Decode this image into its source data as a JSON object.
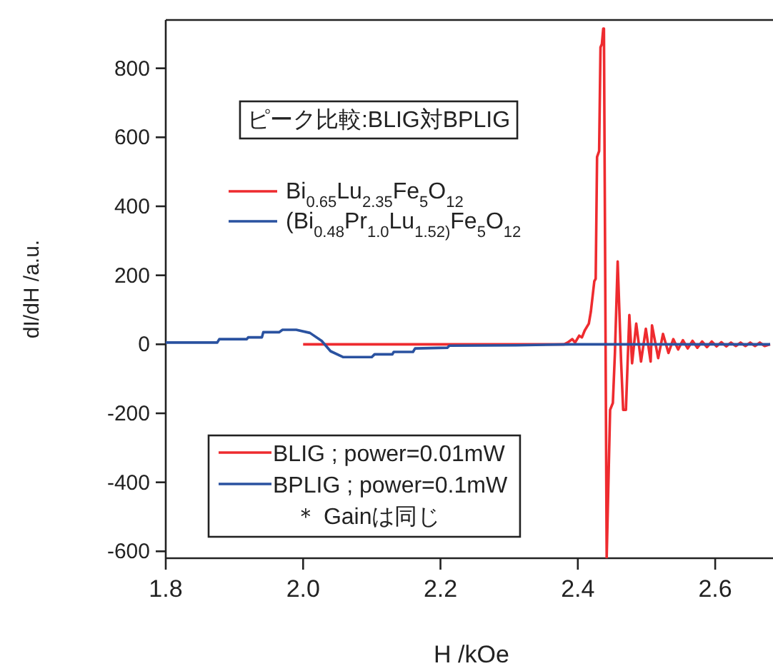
{
  "chart_data": {
    "type": "line",
    "title": "ピーク比較:BLIG対BPLIG",
    "xlabel": "H /kOe",
    "ylabel": "dI/dH  /a.u.",
    "xlim": [
      1.8,
      2.68
    ],
    "ylim": [
      -620,
      940
    ],
    "xticks": [
      1.8,
      {
        "value": 2,
        "label": "2.0"
      },
      2.2,
      2.4,
      2.6
    ],
    "yticks": [
      -600,
      -400,
      -200,
      0,
      200,
      400,
      600,
      800
    ],
    "legend": "top left",
    "grid": false,
    "marker": "none",
    "line_style": "solid",
    "annotations": [
      "BLIG ; power=0.01mW",
      "BPLIG ; power=0.1mW",
      "＊ Gainは同じ"
    ],
    "series": [
      {
        "name": "Bi$_{0.65}$Lu$_{2.35}$Fe$_{5}$O$_{12}$",
        "color": "#ee2b2f",
        "x": [
          2.0,
          2.38,
          2.385,
          2.392,
          2.396,
          2.402,
          2.406,
          2.41,
          2.416,
          2.419,
          2.424,
          2.426,
          2.428,
          2.431,
          2.433,
          2.435,
          2.437,
          2.438,
          2.442,
          2.447,
          2.451,
          2.454,
          2.458,
          2.463,
          2.466,
          2.47,
          2.475,
          2.479,
          2.485,
          2.492,
          2.499,
          2.506,
          2.508,
          2.517,
          2.524,
          2.532,
          2.539,
          2.546,
          2.553,
          2.56,
          2.567,
          2.574,
          2.581,
          2.588,
          2.595,
          2.602,
          2.609,
          2.616,
          2.623,
          2.63,
          2.637,
          2.644,
          2.651,
          2.658,
          2.665,
          2.672,
          2.68
        ],
        "values": [
          0,
          0,
          5,
          15,
          5,
          25,
          20,
          40,
          60,
          95,
          183,
          190,
          543,
          560,
          861,
          870,
          915,
          915,
          -618,
          -190,
          -170,
          -25,
          240,
          -50,
          -190,
          -190,
          85,
          -55,
          60,
          -50,
          45,
          -50,
          55,
          -40,
          30,
          -25,
          15,
          -15,
          12,
          -12,
          10,
          -10,
          8,
          -8,
          8,
          -6,
          6,
          -6,
          5,
          -5,
          5,
          -5,
          5,
          -5,
          5,
          -5,
          0
        ]
      },
      {
        "name": "(Bi$_{0.48}$Pr$_{1.0}$Lu$_{1.52)}$Fe$_{5}$O$_{12}$",
        "color": "#2a52a0",
        "x": [
          1.8,
          1.875,
          1.878,
          1.918,
          1.92,
          1.94,
          1.942,
          1.965,
          1.97,
          1.99,
          2.01,
          2.027,
          2.04,
          2.058,
          2.1,
          2.104,
          2.13,
          2.132,
          2.16,
          2.163,
          2.21,
          2.213,
          2.31,
          2.39,
          2.68
        ],
        "values": [
          5,
          5,
          15,
          15,
          20,
          20,
          35,
          35,
          42,
          42,
          33,
          10,
          -20,
          -37,
          -37,
          -29,
          -29,
          -22,
          -22,
          -12,
          -10,
          -4,
          -3,
          0,
          0
        ]
      }
    ]
  }
}
